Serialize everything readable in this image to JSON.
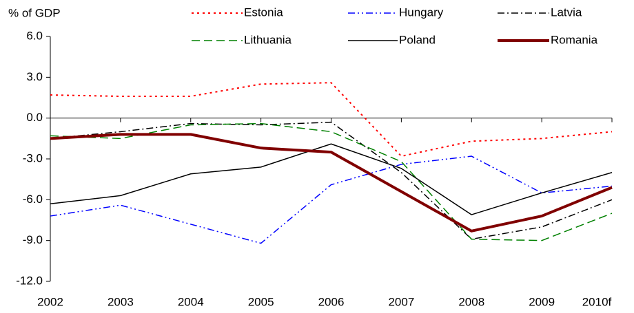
{
  "chart_data": {
    "type": "line",
    "y_label": "% of GDP",
    "categories": [
      "2002",
      "2003",
      "2004",
      "2005",
      "2006",
      "2007",
      "2008",
      "2009",
      "2010f"
    ],
    "series": [
      {
        "name": "Estonia",
        "color": "#ff0000",
        "dash": "3,5",
        "width": 2,
        "values": [
          1.7,
          1.6,
          1.6,
          2.5,
          2.6,
          -2.8,
          -1.7,
          -1.5,
          -1.0
        ]
      },
      {
        "name": "Hungary",
        "color": "#0000ff",
        "dash": "10,4,2,4,2,4",
        "width": 1.5,
        "values": [
          -7.2,
          -6.4,
          -7.8,
          -9.2,
          -4.9,
          -3.4,
          -2.8,
          -5.5,
          -5.0
        ]
      },
      {
        "name": "Latvia",
        "color": "#000000",
        "dash": "10,4,2,4",
        "width": 1.5,
        "values": [
          -1.5,
          -1.0,
          -0.4,
          -0.5,
          -0.3,
          -4.0,
          -8.9,
          -8.0,
          -6.0
        ]
      },
      {
        "name": "Lithuania",
        "color": "#008000",
        "dash": "12,6",
        "width": 1.5,
        "values": [
          -1.3,
          -1.5,
          -0.5,
          -0.4,
          -1.0,
          -3.2,
          -8.9,
          -9.0,
          -7.0
        ]
      },
      {
        "name": "Poland",
        "color": "#000000",
        "dash": "none",
        "width": 1.5,
        "values": [
          -6.3,
          -5.7,
          -4.1,
          -3.6,
          -1.9,
          -3.7,
          -7.1,
          -5.5,
          -4.0
        ]
      },
      {
        "name": "Romania",
        "color": "#800000",
        "dash": "none",
        "width": 4,
        "values": [
          -1.5,
          -1.2,
          -1.2,
          -2.2,
          -2.5,
          -5.4,
          -8.3,
          -7.2,
          -5.1
        ]
      }
    ],
    "ylim": [
      -12,
      6
    ],
    "yticks": [
      {
        "value": -12,
        "label": "-12.0"
      },
      {
        "value": -9,
        "label": "-9.0"
      },
      {
        "value": -6,
        "label": "-6.0"
      },
      {
        "value": -3,
        "label": "-3.0"
      },
      {
        "value": 0,
        "label": "0.0"
      },
      {
        "value": 3,
        "label": "3.0"
      },
      {
        "value": 6,
        "label": "6.0"
      }
    ],
    "grid": false,
    "legend": "top"
  }
}
